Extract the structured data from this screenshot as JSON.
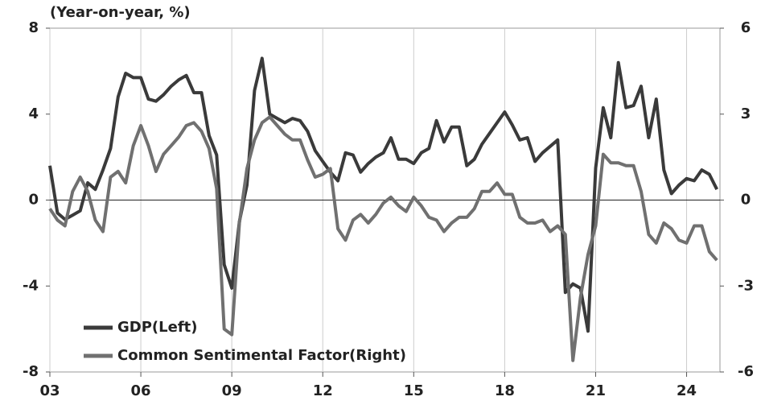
{
  "chart_data": {
    "type": "line",
    "y_axis_label": "(Year-on-year, %)",
    "x": [
      2003,
      2003.25,
      2003.5,
      2003.75,
      2004,
      2004.25,
      2004.5,
      2004.75,
      2005,
      2005.25,
      2005.5,
      2005.75,
      2006,
      2006.25,
      2006.5,
      2006.75,
      2007,
      2007.25,
      2007.5,
      2007.75,
      2008,
      2008.25,
      2008.5,
      2008.75,
      2009,
      2009.25,
      2009.5,
      2009.75,
      2010,
      2010.25,
      2010.5,
      2010.75,
      2011,
      2011.25,
      2011.5,
      2011.75,
      2012,
      2012.25,
      2012.5,
      2012.75,
      2013,
      2013.25,
      2013.5,
      2013.75,
      2014,
      2014.25,
      2014.5,
      2014.75,
      2015,
      2015.25,
      2015.5,
      2015.75,
      2016,
      2016.25,
      2016.5,
      2016.75,
      2017,
      2017.25,
      2017.5,
      2017.75,
      2018,
      2018.25,
      2018.5,
      2018.75,
      2019,
      2019.25,
      2019.5,
      2019.75,
      2020,
      2020.25,
      2020.5,
      2020.75,
      2021,
      2021.25,
      2021.5,
      2021.75,
      2022,
      2022.25,
      2022.5,
      2022.75,
      2023,
      2023.25,
      2023.5,
      2023.75,
      2024,
      2024.25,
      2024.5,
      2024.75,
      2025
    ],
    "series": [
      {
        "name": "GDP(Left)",
        "color": "#3a3a3a",
        "axis": "y",
        "values": [
          1.6,
          -0.6,
          -0.9,
          -0.7,
          -0.5,
          0.8,
          0.5,
          1.4,
          2.4,
          4.8,
          5.9,
          5.7,
          5.7,
          4.7,
          4.6,
          4.9,
          5.3,
          5.6,
          5.8,
          5.0,
          5.0,
          3.0,
          2.1,
          -3.0,
          -4.1,
          -1.0,
          0.7,
          5.1,
          6.6,
          4.0,
          3.8,
          3.6,
          3.8,
          3.7,
          3.2,
          2.3,
          1.8,
          1.3,
          0.9,
          2.2,
          2.1,
          1.3,
          1.7,
          2.0,
          2.2,
          2.9,
          1.9,
          1.9,
          1.7,
          2.2,
          2.4,
          3.7,
          2.7,
          3.4,
          3.4,
          1.6,
          1.9,
          2.6,
          3.1,
          3.6,
          4.1,
          3.5,
          2.8,
          2.9,
          1.8,
          2.2,
          2.5,
          2.8,
          -4.3,
          -3.9,
          -4.1,
          -6.1,
          1.5,
          4.3,
          2.9,
          6.4,
          4.3,
          4.4,
          5.3,
          2.9,
          4.7,
          1.4,
          0.3,
          0.7,
          1.0,
          0.9,
          1.4,
          1.2,
          0.5
        ]
      },
      {
        "name": "Common Sentimental Factor(Right)",
        "color": "#707070",
        "axis": "y2",
        "values": [
          -0.3,
          -0.7,
          -0.9,
          0.3,
          0.8,
          0.3,
          -0.7,
          -1.1,
          0.8,
          1.0,
          0.6,
          1.9,
          2.6,
          1.9,
          1.0,
          1.6,
          1.9,
          2.2,
          2.6,
          2.7,
          2.4,
          1.8,
          0.4,
          -4.5,
          -4.7,
          -0.8,
          1.1,
          2.1,
          2.7,
          2.9,
          2.6,
          2.3,
          2.1,
          2.1,
          1.4,
          0.8,
          0.9,
          1.1,
          -1.0,
          -1.4,
          -0.7,
          -0.5,
          -0.8,
          -0.5,
          -0.1,
          0.1,
          -0.2,
          -0.4,
          0.1,
          -0.2,
          -0.6,
          -0.7,
          -1.1,
          -0.8,
          -0.6,
          -0.6,
          -0.3,
          0.3,
          0.3,
          0.6,
          0.2,
          0.2,
          -0.6,
          -0.8,
          -0.8,
          -0.7,
          -1.1,
          -0.9,
          -1.2,
          -5.6,
          -3.4,
          -1.9,
          -0.9,
          1.6,
          1.3,
          1.3,
          1.2,
          1.2,
          0.3,
          -1.2,
          -1.5,
          -0.8,
          -1.0,
          -1.4,
          -1.5,
          -0.9,
          -0.9,
          -1.8,
          -2.1
        ]
      }
    ],
    "xlim": [
      2003,
      2025.1
    ],
    "xticks": [
      {
        "value": 2003,
        "label": "03"
      },
      {
        "value": 2006,
        "label": "06"
      },
      {
        "value": 2009,
        "label": "09"
      },
      {
        "value": 2012,
        "label": "12"
      },
      {
        "value": 2015,
        "label": "15"
      },
      {
        "value": 2018,
        "label": "18"
      },
      {
        "value": 2021,
        "label": "21"
      },
      {
        "value": 2024,
        "label": "24"
      }
    ],
    "ylim": [
      -8,
      8
    ],
    "yticks": [
      8,
      4,
      0,
      -4,
      -8
    ],
    "y2lim": [
      -6,
      6
    ],
    "y2ticks": [
      6,
      3,
      0,
      -3,
      -6
    ],
    "grid": "x",
    "legend": "lower left"
  }
}
